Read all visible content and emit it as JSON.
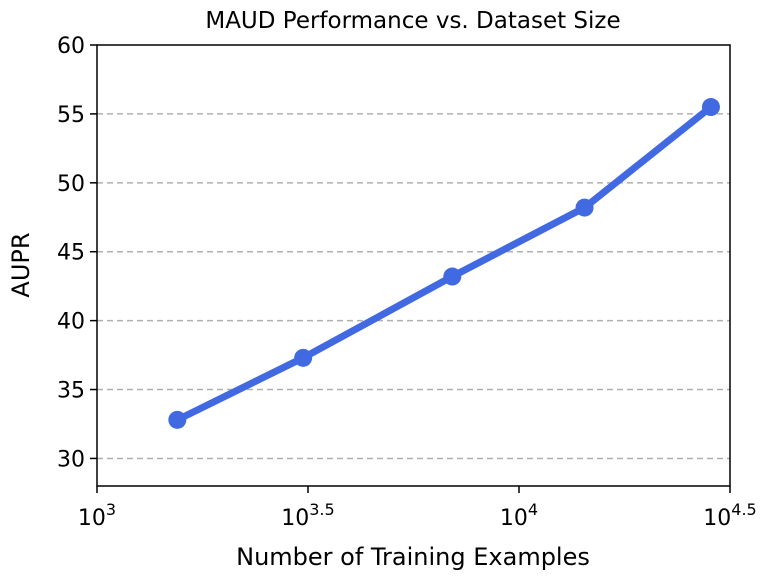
{
  "chart_data": {
    "type": "line",
    "title": "MAUD Performance vs. Dataset Size",
    "xlabel": "Number of Training Examples",
    "ylabel": "AUPR",
    "x_scale": "log10",
    "xlim": [
      1000,
      31623
    ],
    "ylim": [
      28,
      60
    ],
    "x_ticks": [
      {
        "value": 1000,
        "base": "10",
        "exp": "3"
      },
      {
        "value": 3162,
        "base": "10",
        "exp": "3.5"
      },
      {
        "value": 10000,
        "base": "10",
        "exp": "4"
      },
      {
        "value": 31623,
        "base": "10",
        "exp": "4.5"
      }
    ],
    "y_ticks": [
      30,
      35,
      40,
      45,
      50,
      55,
      60
    ],
    "grid": {
      "y": true,
      "x": false,
      "style": "dashed"
    },
    "series": [
      {
        "color": "#4169E1",
        "x": [
          1550,
          3080,
          6950,
          14300,
          28500
        ],
        "y": [
          32.8,
          37.3,
          43.2,
          48.2,
          55.5
        ]
      }
    ]
  }
}
